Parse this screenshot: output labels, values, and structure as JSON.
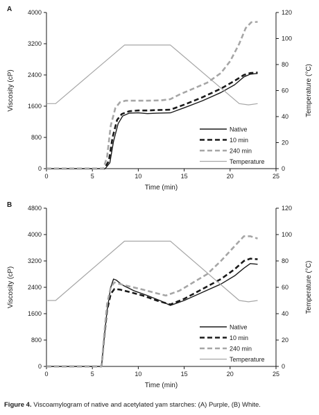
{
  "caption": {
    "bold": "Figure 4.",
    "text": "Viscoamylogram of native and acetylated yam starches: (A) Purple, (B) White."
  },
  "colors": {
    "native": "#1a1a1a",
    "m10": "#1a1a1a",
    "m240": "#a6a6a6",
    "temperature": "#a6a6a6"
  },
  "chart_data": [
    {
      "type": "line",
      "panel_label": "A",
      "xlabel": "Time (min)",
      "ylabel": "Viscosity (cP)",
      "y2label": "Temperature (°C)",
      "xlim": [
        0,
        25
      ],
      "ylim": [
        0,
        4000
      ],
      "y2lim": [
        0,
        120
      ],
      "xticks": [
        0,
        5,
        10,
        15,
        20,
        25
      ],
      "yticks": [
        0,
        800,
        1600,
        2400,
        3200,
        4000
      ],
      "y2ticks": [
        0,
        20,
        40,
        60,
        80,
        100,
        120
      ],
      "legend_position": "lower-right",
      "series": [
        {
          "name": "Native",
          "axis": "left",
          "style": "solid",
          "x": [
            0,
            6.4,
            6.9,
            7.3,
            7.8,
            8.3,
            9.0,
            10.0,
            11.0,
            12.0,
            13.5,
            15.0,
            17.0,
            19.0,
            20.5,
            21.5,
            22.2,
            23.0
          ],
          "y": [
            0,
            0,
            150,
            700,
            1150,
            1350,
            1420,
            1430,
            1410,
            1420,
            1430,
            1560,
            1740,
            1950,
            2150,
            2350,
            2420,
            2440
          ]
        },
        {
          "name": "10 min",
          "axis": "left",
          "style": "dashed",
          "x": [
            0,
            6.3,
            6.8,
            7.2,
            7.7,
            8.2,
            9.0,
            10.0,
            11.0,
            12.0,
            13.5,
            15.0,
            17.0,
            19.0,
            20.5,
            21.5,
            22.2,
            23.0
          ],
          "y": [
            0,
            0,
            200,
            800,
            1250,
            1400,
            1470,
            1490,
            1490,
            1500,
            1510,
            1640,
            1830,
            2050,
            2250,
            2400,
            2450,
            2460
          ]
        },
        {
          "name": "240 min",
          "axis": "left",
          "style": "dashed",
          "x": [
            0,
            6.2,
            6.6,
            7.0,
            7.5,
            8.0,
            8.6,
            9.5,
            11.0,
            12.5,
            13.5,
            14.5,
            16.0,
            17.5,
            19.0,
            20.0,
            21.0,
            21.7,
            22.3,
            23.0
          ],
          "y": [
            0,
            0,
            300,
            1100,
            1550,
            1700,
            1740,
            1740,
            1740,
            1750,
            1780,
            1900,
            2050,
            2200,
            2450,
            2750,
            3200,
            3600,
            3750,
            3760
          ]
        },
        {
          "name": "Temperature",
          "axis": "right",
          "style": "solid",
          "x": [
            0,
            1.0,
            8.5,
            13.5,
            21.0,
            22.0,
            23.0
          ],
          "y": [
            50,
            50,
            95,
            95,
            50,
            49,
            50
          ]
        }
      ]
    },
    {
      "type": "line",
      "panel_label": "B",
      "xlabel": "Time (min)",
      "ylabel": "Viscosity (cP)",
      "y2label": "Temperature (°C)",
      "xlim": [
        0,
        25
      ],
      "ylim": [
        0,
        4800
      ],
      "y2lim": [
        0,
        120
      ],
      "xticks": [
        0,
        5,
        10,
        15,
        20,
        25
      ],
      "yticks": [
        0,
        800,
        1600,
        2400,
        3200,
        4000,
        4800
      ],
      "y2ticks": [
        0,
        20,
        40,
        60,
        80,
        100,
        120
      ],
      "legend_position": "lower-right",
      "series": [
        {
          "name": "Native",
          "axis": "left",
          "style": "solid",
          "x": [
            0,
            6.0,
            6.3,
            6.6,
            7.0,
            7.3,
            7.6,
            8.2,
            9.5,
            11.0,
            12.5,
            13.5,
            15.0,
            17.0,
            19.0,
            20.5,
            21.5,
            22.2,
            23.0
          ],
          "y": [
            0,
            0,
            900,
            1700,
            2400,
            2650,
            2620,
            2480,
            2300,
            2150,
            1980,
            1850,
            2000,
            2250,
            2500,
            2750,
            2980,
            3120,
            3100
          ]
        },
        {
          "name": "10 min",
          "axis": "left",
          "style": "dashed",
          "x": [
            0,
            6.0,
            6.3,
            6.6,
            7.0,
            7.4,
            8.0,
            9.0,
            10.5,
            12.0,
            13.5,
            15.0,
            17.0,
            19.0,
            20.5,
            21.5,
            22.2,
            23.0
          ],
          "y": [
            0,
            0,
            900,
            1700,
            2200,
            2350,
            2330,
            2260,
            2150,
            2000,
            1880,
            2050,
            2350,
            2650,
            2950,
            3200,
            3270,
            3250
          ]
        },
        {
          "name": "240 min",
          "axis": "left",
          "style": "dashed",
          "x": [
            0,
            6.0,
            6.3,
            6.6,
            7.0,
            7.4,
            8.0,
            9.0,
            10.5,
            12.0,
            13.0,
            14.5,
            16.0,
            17.5,
            19.0,
            20.5,
            21.5,
            22.2,
            23.0
          ],
          "y": [
            0,
            0,
            1000,
            1900,
            2400,
            2550,
            2500,
            2430,
            2330,
            2220,
            2150,
            2300,
            2550,
            2800,
            3200,
            3650,
            3950,
            3950,
            3880
          ]
        },
        {
          "name": "Temperature",
          "axis": "right",
          "style": "solid",
          "x": [
            0,
            1.0,
            8.5,
            13.5,
            21.0,
            22.0,
            23.0
          ],
          "y": [
            50,
            50,
            95,
            95,
            50,
            49,
            50
          ]
        }
      ]
    }
  ]
}
